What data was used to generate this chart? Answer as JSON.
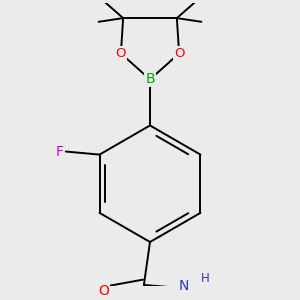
{
  "background_color": "#ebebeb",
  "atom_colors": {
    "C": "#000000",
    "H": "#000000",
    "O": "#ff0000",
    "N": "#3333cc",
    "F": "#cc00cc",
    "B": "#00aa00"
  },
  "bond_color": "#000000",
  "bond_width": 1.4,
  "font_size_atoms": 10,
  "font_size_H": 8.5
}
